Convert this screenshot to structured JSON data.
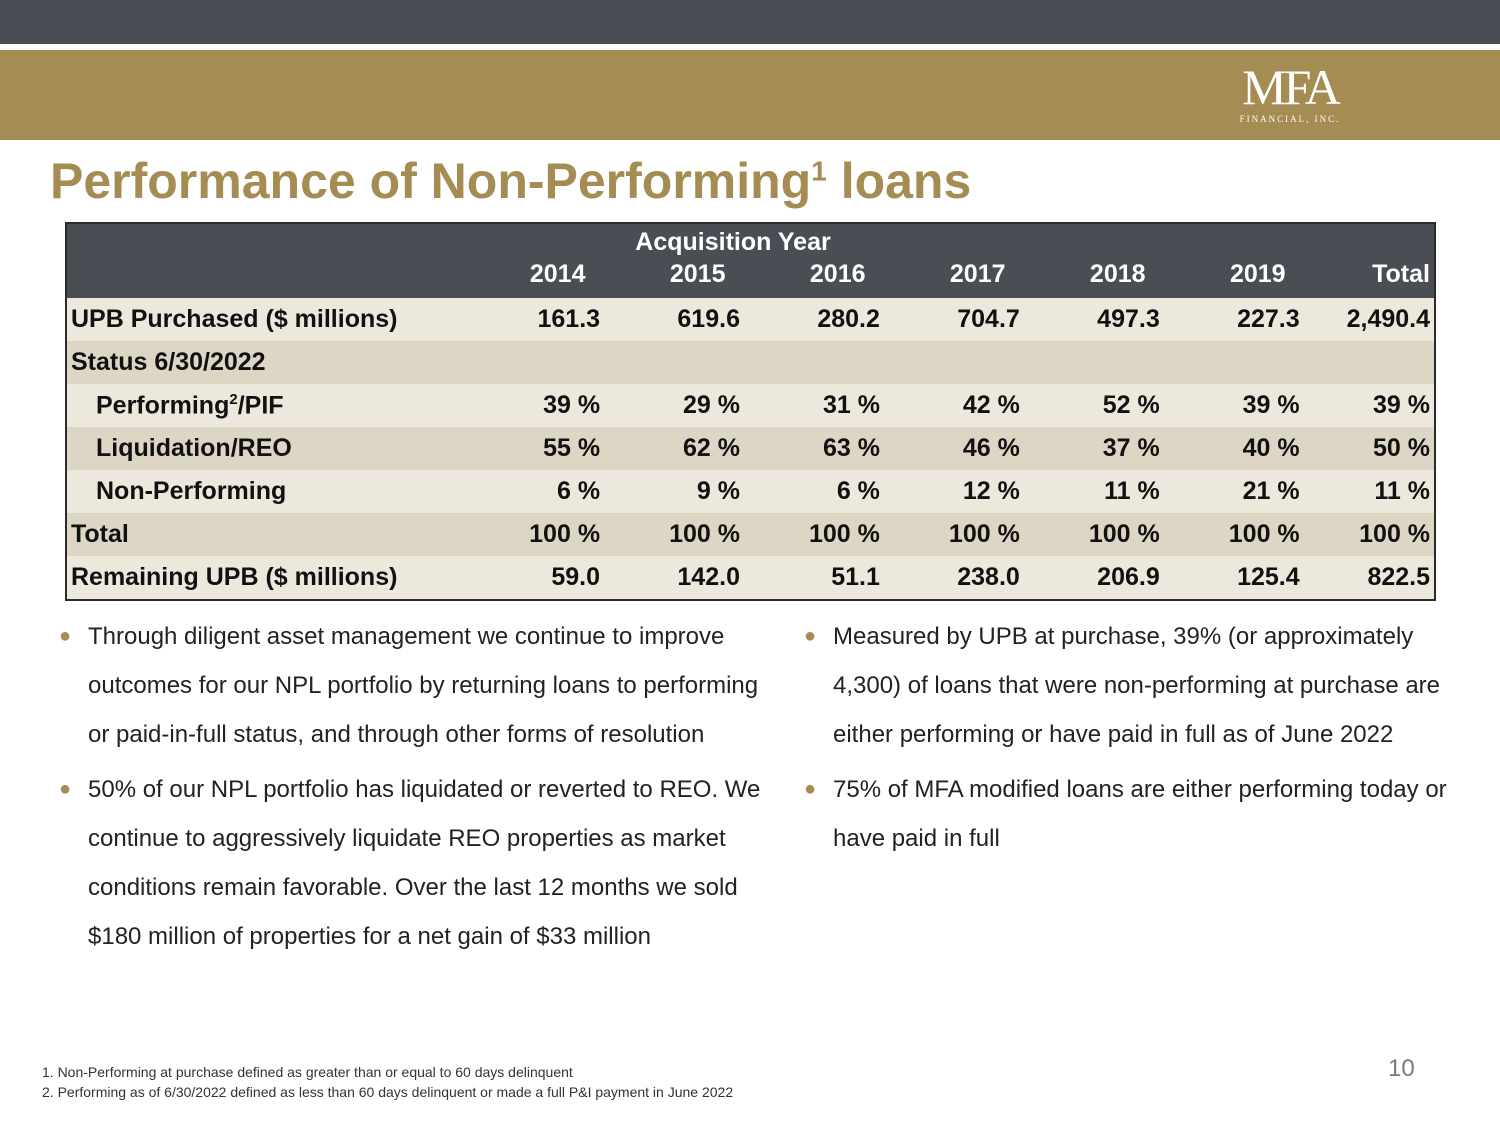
{
  "logo": {
    "main": "MFA",
    "sub": "FINANCIAL, INC."
  },
  "title": {
    "text": "Performance of Non-Performing",
    "sup": "1",
    "suffix": " loans"
  },
  "table": {
    "caption": "Acquisition Year",
    "columns": [
      "2014",
      "2015",
      "2016",
      "2017",
      "2018",
      "2019",
      "Total"
    ],
    "rows": [
      {
        "label": "UPB Purchased ($ millions)",
        "values": [
          "161.3",
          "619.6",
          "280.2",
          "704.7",
          "497.3",
          "227.3",
          "2,490.4"
        ]
      },
      {
        "label": "Status 6/30/2022",
        "values": []
      },
      {
        "label": "Performing",
        "sup": "2",
        "label_suffix": "/PIF",
        "values": [
          "39 %",
          "29 %",
          "31 %",
          "42 %",
          "52 %",
          "39 %",
          "39 %"
        ]
      },
      {
        "label": "Liquidation/REO",
        "values": [
          "55 %",
          "62 %",
          "63 %",
          "46 %",
          "37 %",
          "40 %",
          "50 %"
        ]
      },
      {
        "label": "Non-Performing",
        "values": [
          "6 %",
          "9 %",
          "6 %",
          "12 %",
          "11 %",
          "21 %",
          "11 %"
        ]
      },
      {
        "label": "Total",
        "values": [
          "100 %",
          "100 %",
          "100 %",
          "100 %",
          "100 %",
          "100 %",
          "100 %"
        ]
      },
      {
        "label": "Remaining UPB ($ millions)",
        "values": [
          "59.0",
          "142.0",
          "51.1",
          "238.0",
          "206.9",
          "125.4",
          "822.5"
        ]
      }
    ]
  },
  "bullets_left": [
    "Through diligent asset management we continue to improve outcomes for our NPL portfolio by returning loans to performing or paid-in-full status, and through other forms of resolution",
    "50% of our NPL portfolio has liquidated or reverted to REO.  We continue to aggressively liquidate REO properties as market conditions remain favorable.  Over the last 12 months we sold $180 million of properties for a net gain of $33 million"
  ],
  "bullets_right": [
    "Measured by UPB at purchase, 39% (or approximately 4,300) of loans that were non-performing at purchase are either performing or have paid in full as of June 2022",
    "75% of MFA modified loans are either performing today or have paid in full"
  ],
  "footnotes": [
    "1. Non-Performing at purchase defined as greater than or equal to 60 days delinquent",
    "2. Performing as of 6/30/2022 defined as less than 60 days delinquent or made a full P&I payment in June 2022"
  ],
  "page_number": "10",
  "colors": {
    "gold": "#a48c53",
    "dark": "#4a4e54",
    "row_dark": "#ddd6c4",
    "row_light": "#ede8dc"
  }
}
